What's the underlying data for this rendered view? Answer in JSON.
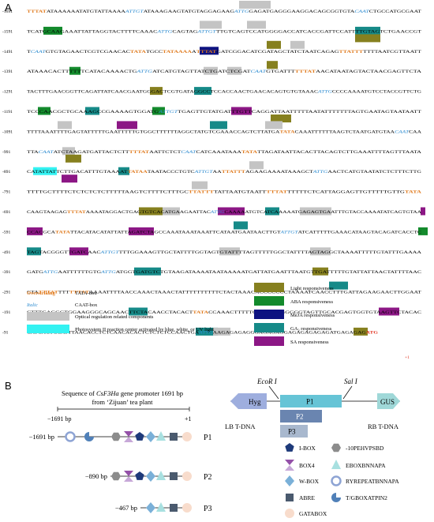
{
  "panel_a": {
    "label": "A",
    "rows": [
      {
        "pos": "-1691",
        "seq": "TTTATATAAAAAATATGTATTAAAAATTGTATAAAGAAGTATGTAGGAGAAGATTGGAGATGAGGGAAGGACAGCGGTGTACAATCTGCCATGCGAAT"
      },
      {
        "pos": "-1591",
        "seq": "TCATGCAAGAAATTATTAGGTACTTTTCAAACATTGCAGTAGATTGTTTGTCAGTCCATGGGGACCATCACCGATTCCATTTTGTAGTCTGAACCGT"
      },
      {
        "pos": "-1491",
        "seq": "TCAATGTGTAGAACTCGTCGAACACTATATGCCTATAAAAATTTATGATCGGACATCGATAGCTATCTAATCAGAGTTATTTTTTTAATCGTTAATT"
      },
      {
        "pos": "-1391",
        "seq": "ATAAACACTTTTTTCATACAAAACTGATTGATCATGTAGTTATCTGATCTCGATCAATGTGATTTTTTATAACATAATAGTACTAACGAGTTCTA"
      },
      {
        "pos": "-1291",
        "seq": "TACTTTGAACGGTTCAGATTATCAACGAATGGGACTCGTGATAGGCCTCCACCAACTGAACACAGTGTGTAAACATTGCCCCAAAATGTCCTACCGTTCTG"
      },
      {
        "pos": "-1191",
        "seq": "TCCCAACGCTGCAAAGCCGAAAAGTGGATGATTGTTGAGTTGTATGATTTGTTCAGGATTAATTTTTAATATTTTTTTAGTGAATAGTAATAATT"
      },
      {
        "pos": "-1091",
        "seq": "TTTTAAATTTTGAGTATTTTTGAATTTTTGTGGCTTTTTTAGGCTATGTCGAAACCAGTCTTATGATATACAAATTTTTTAAGTCTAATGATGTAACAATCAA"
      },
      {
        "pos": "-991",
        "seq": "TTACAATATCTAAGATGATTACTCTTTTTATAATTCTCTCAATCATCAAATAAATATATTAGATAATTACACTTACAGTCTTGAAATTTTAGTTTAATA"
      },
      {
        "pos": "-891",
        "seq": "CATATTATTCTTGACATTTGTAAAATTATAATAATACCCTGTCATTGTAATTATTTAGAAGAAAATAAAGCTATTGAACTCATGTAATATCTCTTTCTTG"
      },
      {
        "pos": "-791",
        "seq": "TTTTGCTTTTCTCTCTCTCTTTTTAAGTCTTTTCTTTGCTTATTTTATTAATGTAATTTTTATTTTTTCTCATTAGGAGTTGTTTTTGTTGTATA"
      },
      {
        "pos": "-691",
        "seq": "CAAGTAAGAGTTTATAAAATAGGACTGAGTGTCACATGAAGAATTACATTGCAAAAATGTCATCAAAAATGAGAGTGAATTTGTACCAAAATATCAGTGTAA"
      },
      {
        "pos": "-591",
        "seq": "CCACGCATATATTACATACATATTATTAGATCTAGCCAAATAAATAAATTCATAATGAATAACTTGTATTGTATCATTTTTGAAACATAAGTACAGATCACCTC"
      },
      {
        "pos": "-491",
        "seq": "TAGTACGGGTTGATCAACATTGTTTTGGAAAGTTGCTATTTTGGTAGTGTATTTTAGTTTTTGGCTATTTTAGTAGGCTAAAATTTTTGTATTTGAAAA"
      },
      {
        "pos": "-391",
        "seq": "GATGATTGAATTTTTTGTGATTGATGGTGATGTCTGTAAGATAAAATAATAAAAATGATTATGAATTTAATGTTGATTTTTGTATTATTAACTATTTTAAC"
      },
      {
        "pos": "-291",
        "seq": "CTATTTATTTTTTTATAAAATTTTAACCAAACTAAACTATTTTTTTTTTCTACTAAACACCCCCCCTAAAATCAACCTTTGATTAGAAGAACTTGGAAT"
      },
      {
        "pos": "-191",
        "seq": "CTTTGAGGGTGGAAGGGCAGCAACTTCTACAACCTACACTTATACCAAACTTTTTCATCTGAGGGGGTAGTTGCACGAGTGGTGTAAGTTCTACAC"
      },
      {
        "pos": "-91",
        "seq": "CATCACTCCATTTAACACCTCTCAACACACTCTCTCTCCAACTGAATTGAAGAGAGAGGGAGAGAGGAGAGAGAGAGATGAGAGAGATG"
      }
    ],
    "tss": "+1",
    "legend": {
      "tata_word": "Overstriking",
      "tata_label": "TATA-box",
      "caat_word": "Italic",
      "caat_label": "CAAT-box",
      "optical_label": "Optical regulation related components",
      "ps2_label": "Photosystem II reaction center activated by blue, white, or UV light",
      "light_label": "Light responsiveness",
      "aba_label": "ABA responsiveness",
      "meja_label": "MeJA responsiveness",
      "ga_label": "GA₃ responsiveness",
      "sa_label": "SA responsiveness"
    },
    "colors": {
      "light": "#86801f",
      "aba": "#138a2c",
      "meja": "#0d1280",
      "ga": "#168a88",
      "sa": "#8c1785",
      "optical": "#c4c4c4",
      "ps2": "#33f2f2",
      "tata": "#e07b1f",
      "caat": "#2a8ad0",
      "start": "#e0301e"
    }
  },
  "panel_b": {
    "label": "B",
    "title_part1": "Sequence of ",
    "title_gene": "CsF3Ha",
    "title_part2": " gene promoter 1691 bp",
    "title_line2": "from ‘Zijuan’ tea plant",
    "scale_left": "−1691 bp",
    "scale_right": "+1",
    "constructs": [
      {
        "start": "−1691 bp",
        "name": "P1"
      },
      {
        "start": "−890 bp",
        "name": "P2"
      },
      {
        "start": "−467 bp",
        "name": "P3"
      }
    ],
    "vector": {
      "ecor": "EcoR I",
      "sal": "Sal I",
      "hyg": "Hyg",
      "gus": "GUS",
      "p1": "P1",
      "p2": "P2",
      "p3": "P3",
      "lb": "LB T-DNA",
      "rb": "RB T-DNA"
    },
    "legend": [
      {
        "icon": "pentagon-icon",
        "label": "I-BOX"
      },
      {
        "icon": "hexagon-icon",
        "label": "-10PEHVPSBD"
      },
      {
        "icon": "bowtie-icon",
        "label": "BOX4"
      },
      {
        "icon": "triangle-icon",
        "label": "EBOXBNNAPA"
      },
      {
        "icon": "diamond-icon",
        "label": "W-BOX"
      },
      {
        "icon": "ring-icon",
        "label": "RYREPEATBNNAPA"
      },
      {
        "icon": "square-icon",
        "label": "ABRE"
      },
      {
        "icon": "pacman-icon",
        "label": "T/GBOXATPIN2"
      },
      {
        "icon": "circle-icon",
        "label": "GATABOX"
      }
    ]
  }
}
